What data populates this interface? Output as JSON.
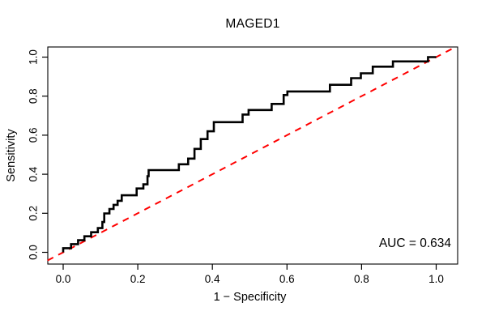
{
  "chart_data": {
    "type": "line",
    "subtype": "roc-step-curve",
    "title": "MAGED1",
    "xlabel": "1 − Specificity",
    "ylabel": "Sensitivity",
    "xlim": [
      0.0,
      1.0
    ],
    "ylim": [
      0.0,
      1.0
    ],
    "grid": false,
    "legend": "none",
    "auc": 0.634,
    "auc_label": "AUC = 0.634",
    "x_ticks": [
      {
        "value": 0.0,
        "label": "0.0"
      },
      {
        "value": 0.2,
        "label": "0.2"
      },
      {
        "value": 0.4,
        "label": "0.4"
      },
      {
        "value": 0.6,
        "label": "0.6"
      },
      {
        "value": 0.8,
        "label": "0.8"
      },
      {
        "value": 1.0,
        "label": "1.0"
      }
    ],
    "y_ticks": [
      {
        "value": 0.0,
        "label": "0.0"
      },
      {
        "value": 0.2,
        "label": "0.2"
      },
      {
        "value": 0.4,
        "label": "0.4"
      },
      {
        "value": 0.6,
        "label": "0.6"
      },
      {
        "value": 0.8,
        "label": "0.8"
      },
      {
        "value": 1.0,
        "label": "1.0"
      }
    ],
    "roc_curve": {
      "name": "ROC step curve",
      "color": "#000000",
      "points": [
        [
          0.0,
          0.0
        ],
        [
          0.0,
          0.021
        ],
        [
          0.021,
          0.021
        ],
        [
          0.021,
          0.042
        ],
        [
          0.04,
          0.042
        ],
        [
          0.04,
          0.062
        ],
        [
          0.057,
          0.062
        ],
        [
          0.057,
          0.082
        ],
        [
          0.075,
          0.082
        ],
        [
          0.075,
          0.103
        ],
        [
          0.093,
          0.103
        ],
        [
          0.093,
          0.124
        ],
        [
          0.105,
          0.124
        ],
        [
          0.105,
          0.155
        ],
        [
          0.11,
          0.155
        ],
        [
          0.11,
          0.199
        ],
        [
          0.124,
          0.199
        ],
        [
          0.124,
          0.222
        ],
        [
          0.135,
          0.222
        ],
        [
          0.135,
          0.243
        ],
        [
          0.146,
          0.243
        ],
        [
          0.146,
          0.264
        ],
        [
          0.157,
          0.264
        ],
        [
          0.157,
          0.292
        ],
        [
          0.197,
          0.292
        ],
        [
          0.197,
          0.327
        ],
        [
          0.215,
          0.327
        ],
        [
          0.215,
          0.348
        ],
        [
          0.226,
          0.348
        ],
        [
          0.226,
          0.39
        ],
        [
          0.229,
          0.39
        ],
        [
          0.229,
          0.421
        ],
        [
          0.31,
          0.421
        ],
        [
          0.31,
          0.451
        ],
        [
          0.335,
          0.451
        ],
        [
          0.335,
          0.48
        ],
        [
          0.352,
          0.48
        ],
        [
          0.352,
          0.53
        ],
        [
          0.369,
          0.53
        ],
        [
          0.369,
          0.58
        ],
        [
          0.387,
          0.58
        ],
        [
          0.387,
          0.62
        ],
        [
          0.404,
          0.62
        ],
        [
          0.404,
          0.667
        ],
        [
          0.481,
          0.667
        ],
        [
          0.481,
          0.706
        ],
        [
          0.497,
          0.706
        ],
        [
          0.497,
          0.729
        ],
        [
          0.559,
          0.729
        ],
        [
          0.559,
          0.76
        ],
        [
          0.591,
          0.76
        ],
        [
          0.591,
          0.806
        ],
        [
          0.601,
          0.806
        ],
        [
          0.601,
          0.824
        ],
        [
          0.715,
          0.824
        ],
        [
          0.715,
          0.858
        ],
        [
          0.772,
          0.858
        ],
        [
          0.772,
          0.892
        ],
        [
          0.798,
          0.892
        ],
        [
          0.798,
          0.917
        ],
        [
          0.83,
          0.917
        ],
        [
          0.83,
          0.951
        ],
        [
          0.884,
          0.951
        ],
        [
          0.884,
          0.978
        ],
        [
          0.978,
          0.978
        ],
        [
          0.978,
          1.0
        ],
        [
          1.0,
          1.0
        ]
      ]
    },
    "reference_line": {
      "name": "chance diagonal",
      "color": "#ff0000",
      "style": "dashed",
      "from": [
        0.0,
        0.0
      ],
      "to": [
        1.0,
        1.0
      ]
    },
    "colors": {
      "curve": "#000000",
      "reference": "#ff0000",
      "axis": "#000000",
      "background": "#ffffff"
    }
  }
}
